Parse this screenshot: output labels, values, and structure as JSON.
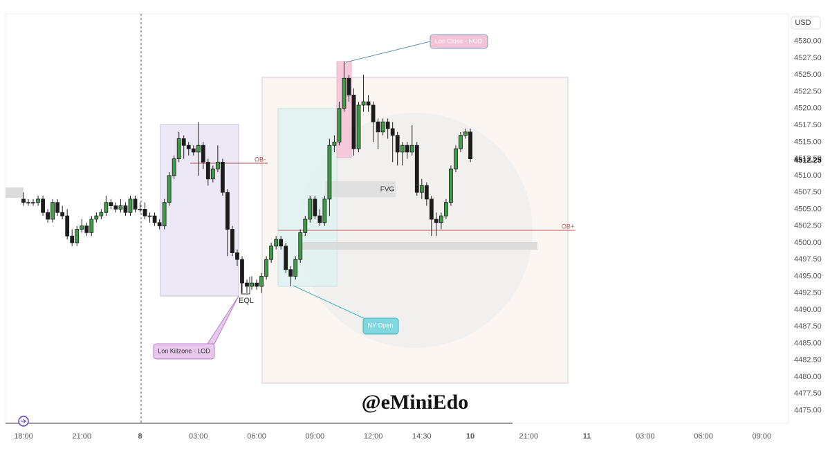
{
  "chart_data": {
    "type": "candlestick",
    "currency": "USD",
    "colors": {
      "up": "#3f9c46",
      "down": "#1c1c1c",
      "outline": "#1c1c1c"
    },
    "open": [
      4506.5,
      4506,
      4506,
      4506,
      4506.5,
      4504.5,
      4503.5,
      4506,
      4504.5,
      4504,
      4501,
      4500,
      4502,
      4502.5,
      4501.5,
      4503.5,
      4504,
      4504.5,
      4506,
      4505.5,
      4505,
      4505.5,
      4504.5,
      4506.5,
      4505,
      4505,
      4504,
      4504,
      4503,
      4502.5,
      4506,
      4510,
      4512.5,
      4515.5,
      4514.5,
      4514,
      4513.5,
      4514.5,
      4512,
      4509.5,
      4511,
      4512,
      4507.5,
      4502,
      4498.5,
      4497.5,
      4494,
      4493.5,
      4494,
      4493.5,
      4495,
      4497.5,
      4499.5,
      4500.5,
      4499.5,
      4496,
      4495,
      4497.5,
      4501.5,
      4503.5,
      4506.5,
      4504,
      4503,
      4506.5,
      4514.5,
      4515,
      4520,
      4524.5,
      4522,
      4514,
      4520.5,
      4521,
      4520.5,
      4518,
      4516.5,
      4518,
      4517,
      4516,
      4513.5,
      4514.5,
      4513.5,
      4514.5,
      4507.5,
      4508.5,
      4506.5,
      4503.5,
      4503,
      4504,
      4506,
      4511,
      4514,
      4516,
      4516.5
    ],
    "high": [
      4507.5,
      4506.5,
      4506.5,
      4507,
      4507,
      4505,
      4506.5,
      4506.5,
      4505.5,
      4505,
      4502,
      4502.5,
      4503.5,
      4503,
      4504,
      4504.5,
      4505,
      4507,
      4506.5,
      4506,
      4506.5,
      4506,
      4507,
      4507,
      4506,
      4506,
      4504.5,
      4504.5,
      4503.5,
      4506.5,
      4510.5,
      4513,
      4516.5,
      4516,
      4515,
      4514.5,
      4518,
      4515,
      4512.5,
      4511.5,
      4514.5,
      4512.5,
      4508,
      4502.5,
      4499,
      4498,
      4494.5,
      4495,
      4494.5,
      4495.5,
      4498,
      4500,
      4501,
      4501,
      4500,
      4496.5,
      4498,
      4502,
      4504,
      4507,
      4507,
      4505,
      4507,
      4515.5,
      4516,
      4521,
      4527,
      4525,
      4523,
      4521,
      4525,
      4522,
      4521,
      4518.5,
      4518.5,
      4518.5,
      4518,
      4516.5,
      4515,
      4515,
      4517.5,
      4515,
      4509.5,
      4509,
      4507,
      4504.5,
      4504.5,
      4506.5,
      4511.5,
      4514.5,
      4516.5,
      4517,
      4517
    ],
    "low": [
      4505.5,
      4505.5,
      4505.5,
      4505.5,
      4504,
      4503,
      4503,
      4504,
      4503.5,
      4500.5,
      4499.5,
      4499.5,
      4501.5,
      4501,
      4501,
      4503,
      4503.5,
      4504,
      4505,
      4504.5,
      4504.5,
      4504,
      4504,
      4504.5,
      4504.5,
      4503.5,
      4503,
      4502.5,
      4502,
      4502,
      4505.5,
      4509.5,
      4512,
      4512.5,
      4513,
      4513,
      4510,
      4511,
      4508.5,
      4509,
      4510.5,
      4507,
      4498,
      4498,
      4496.5,
      4492.5,
      4492.5,
      4493,
      4493,
      4492.5,
      4494.5,
      4497,
      4499,
      4499,
      4495.5,
      4493.5,
      4494.5,
      4497,
      4501,
      4503,
      4503.5,
      4502.5,
      4502.5,
      4504,
      4513.5,
      4514.5,
      4519.5,
      4521,
      4513,
      4513.5,
      4519.5,
      4519.5,
      4515,
      4514,
      4516,
      4515.5,
      4512,
      4511.5,
      4511.5,
      4512.5,
      4513,
      4507,
      4506.5,
      4505.5,
      4501,
      4501,
      4502,
      4503.5,
      4505.5,
      4510.5,
      4513.5,
      4515.5,
      4512
    ],
    "close": [
      4506,
      4506,
      4506,
      4506.5,
      4504.5,
      4503.5,
      4506,
      4504.5,
      4504,
      4501,
      4500,
      4502,
      4502.5,
      4501.5,
      4503.5,
      4504,
      4504.5,
      4506,
      4505.5,
      4505,
      4505.5,
      4504.5,
      4506.5,
      4505,
      4505,
      4504,
      4504,
      4503,
      4502.5,
      4506,
      4510,
      4512.5,
      4515.5,
      4514.5,
      4514,
      4513.5,
      4514.5,
      4512,
      4509.5,
      4511,
      4512,
      4507.5,
      4502,
      4498.5,
      4497.5,
      4494,
      4493.5,
      4494,
      4493.5,
      4495,
      4497.5,
      4499.5,
      4500.5,
      4499.5,
      4496,
      4495,
      4497.5,
      4501.5,
      4503.5,
      4506.5,
      4504,
      4503,
      4506.5,
      4514.5,
      4515,
      4520,
      4524.5,
      4522,
      4514,
      4520.5,
      4521,
      4520.5,
      4518,
      4516.5,
      4518,
      4517,
      4516,
      4513.5,
      4514.5,
      4513.5,
      4514.5,
      4507.5,
      4508.5,
      4506.5,
      4503.5,
      4503,
      4504,
      4506,
      4511,
      4514,
      4516,
      4516.5,
      4512.5
    ],
    "last_price": 4512.25,
    "xlim": [
      -3.7,
      157.5
    ],
    "xticks": [
      {
        "value": 0,
        "label": "18:00"
      },
      {
        "value": 12,
        "label": "21:00"
      },
      {
        "value": 24,
        "label": "8"
      },
      {
        "value": 36,
        "label": "03:00"
      },
      {
        "value": 48,
        "label": "06:00"
      },
      {
        "value": 60,
        "label": "09:00"
      },
      {
        "value": 72,
        "label": "12:00"
      },
      {
        "value": 82,
        "label": "14:30"
      },
      {
        "value": 92,
        "label": "10"
      },
      {
        "value": 104,
        "label": "21:00"
      },
      {
        "value": 116,
        "label": "11"
      },
      {
        "value": 128,
        "label": "03:00"
      },
      {
        "value": 140,
        "label": "06:00"
      },
      {
        "value": 152,
        "label": "09:00"
      }
    ],
    "ylim": [
      4473.1,
      4534.1
    ],
    "yticks": [
      {
        "value": 4475,
        "label": "4475.00"
      },
      {
        "value": 4477.5,
        "label": "4477.50"
      },
      {
        "value": 4480,
        "label": "4480.00"
      },
      {
        "value": 4482.5,
        "label": "4482.50"
      },
      {
        "value": 4485,
        "label": "4485.00"
      },
      {
        "value": 4487.5,
        "label": "4487.50"
      },
      {
        "value": 4490,
        "label": "4490.00"
      },
      {
        "value": 4492.5,
        "label": "4492.50"
      },
      {
        "value": 4495,
        "label": "4495.00"
      },
      {
        "value": 4497.5,
        "label": "4497.50"
      },
      {
        "value": 4500,
        "label": "4500.00"
      },
      {
        "value": 4502.5,
        "label": "4502.50"
      },
      {
        "value": 4505,
        "label": "4505.00"
      },
      {
        "value": 4507.5,
        "label": "4507.50"
      },
      {
        "value": 4510,
        "label": "4510.00"
      },
      {
        "value": 4512.5,
        "label": "4512.50"
      },
      {
        "value": 4515,
        "label": "4515.00"
      },
      {
        "value": 4517.5,
        "label": "4517.50"
      },
      {
        "value": 4520,
        "label": "4520.00"
      },
      {
        "value": 4522.5,
        "label": "4522.50"
      },
      {
        "value": 4525,
        "label": "4525.00"
      },
      {
        "value": 4527.5,
        "label": "4527.50"
      },
      {
        "value": 4530,
        "label": "4530.00"
      }
    ],
    "annotations": {
      "ob_minus": "OB-",
      "ob_plus": "OB+",
      "fvg": "FVG",
      "eql": "EQL",
      "lon_close": "Lon Close - HOD",
      "ny_open": "NY Open",
      "lon_killzone": "Lon Killzone - LOD"
    },
    "watermark": "@eMiniEdo"
  }
}
